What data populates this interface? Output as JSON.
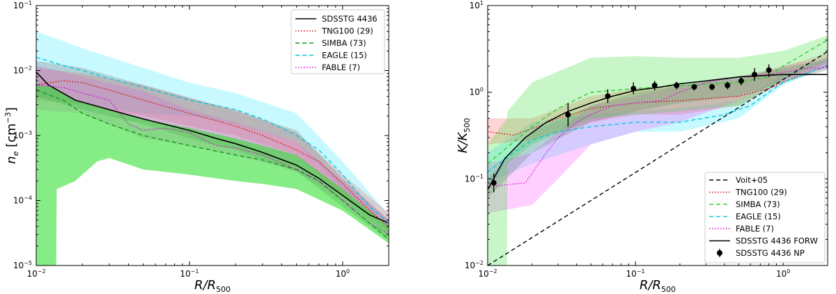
{
  "chart_data": [
    {
      "type": "line",
      "panel": "left",
      "xscale": "log",
      "yscale": "log",
      "xlim": [
        0.01,
        2.0
      ],
      "ylim": [
        1e-05,
        0.1
      ],
      "xlabel": {
        "main": "R/R",
        "sub": "500"
      },
      "ylabel": {
        "main": "n",
        "sub": "e",
        "unit": " [cm",
        "unit_exp": "−3",
        "unit_close": "]"
      },
      "xticks": [
        {
          "value": 0.01,
          "base": "10",
          "exp": "−2"
        },
        {
          "value": 0.1,
          "base": "10",
          "exp": "−1"
        },
        {
          "value": 1.0,
          "base": "10",
          "exp": "0"
        }
      ],
      "yticks": [
        {
          "value": 1e-05,
          "base": "10",
          "exp": "−5"
        },
        {
          "value": 0.0001,
          "base": "10",
          "exp": "−4"
        },
        {
          "value": 0.001,
          "base": "10",
          "exp": "−3"
        },
        {
          "value": 0.01,
          "base": "10",
          "exp": "−2"
        },
        {
          "value": 0.1,
          "base": "10",
          "exp": "−1"
        }
      ],
      "legend_position": "top-right",
      "bands": [
        {
          "name": "EAGLE band",
          "color": "#00e5ff",
          "opacity": 0.22,
          "x": [
            0.01,
            0.02,
            0.05,
            0.1,
            0.2,
            0.5,
            1.0,
            2.0
          ],
          "lower": [
            0.004,
            0.003,
            0.0022,
            0.002,
            0.0015,
            0.0008,
            0.00015,
            4e-05
          ],
          "upper": [
            0.04,
            0.022,
            0.011,
            0.0065,
            0.0045,
            0.0022,
            0.0004,
            6e-05
          ]
        },
        {
          "name": "TNG100 band",
          "color": "#ff5555",
          "opacity": 0.25,
          "x": [
            0.01,
            0.02,
            0.05,
            0.1,
            0.2,
            0.5,
            1.0,
            2.0
          ],
          "lower": [
            0.0035,
            0.003,
            0.002,
            0.0014,
            0.001,
            0.0005,
            0.00012,
            3.5e-05
          ],
          "upper": [
            0.011,
            0.009,
            0.006,
            0.0038,
            0.0025,
            0.0011,
            0.00025,
            6.5e-05
          ]
        },
        {
          "name": "FABLE band",
          "color": "#ff44ff",
          "opacity": 0.25,
          "x": [
            0.01,
            0.02,
            0.05,
            0.1,
            0.2,
            0.5,
            1.0,
            2.0
          ],
          "lower": [
            0.0025,
            0.0022,
            0.0009,
            0.0007,
            0.0005,
            0.00028,
            0.0001,
            3e-05
          ],
          "upper": [
            0.012,
            0.008,
            0.0048,
            0.0025,
            0.0016,
            0.0008,
            0.0002,
            5e-05
          ]
        },
        {
          "name": "SDSSTG band",
          "color": "#888888",
          "opacity": 0.35,
          "x": [
            0.01,
            0.02,
            0.05,
            0.1,
            0.2,
            0.5,
            1.0,
            2.0
          ],
          "lower": [
            0.004,
            0.0025,
            0.0015,
            0.0009,
            0.0006,
            0.00028,
            8e-05,
            2.5e-05
          ],
          "upper": [
            0.014,
            0.011,
            0.006,
            0.0038,
            0.0024,
            0.0012,
            0.00022,
            5e-05
          ]
        },
        {
          "name": "SIMBA band",
          "color": "#22dd22",
          "opacity": 0.55,
          "x": [
            0.01,
            0.0135,
            0.0136,
            0.018,
            0.025,
            0.03,
            0.05,
            0.1,
            0.2,
            0.3,
            0.5,
            1.0,
            2.0
          ],
          "lower": [
            1e-05,
            1e-05,
            0.00015,
            0.0002,
            0.0004,
            0.00045,
            0.0003,
            0.00025,
            0.0002,
            0.00018,
            0.00015,
            7e-05,
            2.2e-05
          ],
          "upper": [
            0.006,
            0.0055,
            0.005,
            0.0035,
            0.0028,
            0.0025,
            0.0018,
            0.0013,
            0.0009,
            0.0007,
            0.0005,
            0.00015,
            4e-05
          ]
        }
      ],
      "series": [
        {
          "name": "SDSSTG 4436",
          "color": "#000000",
          "dash": "solid",
          "x": [
            0.01,
            0.012,
            0.018,
            0.03,
            0.05,
            0.1,
            0.15,
            0.2,
            0.3,
            0.5,
            0.7,
            1.0,
            1.5,
            2.0
          ],
          "y": [
            0.0095,
            0.006,
            0.0035,
            0.0025,
            0.0018,
            0.0012,
            0.0009,
            0.00075,
            0.00055,
            0.00035,
            0.00022,
            0.00012,
            6e-05,
            4.5e-05
          ]
        },
        {
          "name": "TNG100 (29)",
          "color": "#dd0000",
          "dash": "dotted",
          "x": [
            0.01,
            0.015,
            0.02,
            0.03,
            0.05,
            0.1,
            0.2,
            0.3,
            0.5,
            0.7,
            1.0,
            1.5,
            2.0
          ],
          "y": [
            0.006,
            0.007,
            0.0065,
            0.005,
            0.0035,
            0.0022,
            0.0014,
            0.001,
            0.0006,
            0.0004,
            0.00018,
            7e-05,
            4e-05
          ]
        },
        {
          "name": "SIMBA (73)",
          "color": "#119911",
          "dash": "dashed",
          "x": [
            0.01,
            0.015,
            0.02,
            0.03,
            0.05,
            0.1,
            0.2,
            0.3,
            0.5,
            0.7,
            1.0,
            1.5,
            2.0
          ],
          "y": [
            0.005,
            0.0035,
            0.0022,
            0.0015,
            0.001,
            0.0007,
            0.0005,
            0.00042,
            0.0003,
            0.0002,
            0.0001,
            4.5e-05,
            2.5e-05
          ]
        },
        {
          "name": "EAGLE (15)",
          "color": "#00c8dd",
          "dash": "dashed",
          "x": [
            0.01,
            0.015,
            0.02,
            0.03,
            0.05,
            0.1,
            0.2,
            0.3,
            0.5,
            0.7,
            1.0,
            1.5,
            2.0
          ],
          "y": [
            0.016,
            0.012,
            0.01,
            0.0075,
            0.0055,
            0.0035,
            0.0025,
            0.0018,
            0.001,
            0.0006,
            0.00025,
            8e-05,
            4.5e-05
          ]
        },
        {
          "name": "FABLE (7)",
          "color": "#dd00dd",
          "dash": "dotted",
          "x": [
            0.01,
            0.015,
            0.02,
            0.03,
            0.04,
            0.05,
            0.07,
            0.1,
            0.15,
            0.2,
            0.3,
            0.5,
            0.7,
            1.0,
            1.5,
            2.0
          ],
          "y": [
            0.006,
            0.0055,
            0.0045,
            0.0035,
            0.0015,
            0.0012,
            0.0013,
            0.0011,
            0.0007,
            0.00065,
            0.0005,
            0.0003,
            0.0002,
            0.0001,
            4.5e-05,
            3e-05
          ]
        }
      ]
    },
    {
      "type": "line",
      "panel": "right",
      "xscale": "log",
      "yscale": "log",
      "xlim": [
        0.01,
        2.0
      ],
      "ylim": [
        0.01,
        10.0
      ],
      "xlabel": {
        "main": "R/R",
        "sub": "500"
      },
      "ylabel": {
        "main": "K/K",
        "sub": "500"
      },
      "xticks": [
        {
          "value": 0.01,
          "base": "10",
          "exp": "−2"
        },
        {
          "value": 0.1,
          "base": "10",
          "exp": "−1"
        },
        {
          "value": 1.0,
          "base": "10",
          "exp": "0"
        }
      ],
      "yticks": [
        {
          "value": 0.01,
          "base": "10",
          "exp": "−2"
        },
        {
          "value": 0.1,
          "base": "10",
          "exp": "−1"
        },
        {
          "value": 1.0,
          "base": "10",
          "exp": "0"
        },
        {
          "value": 10.0,
          "base": "10",
          "exp": "1"
        }
      ],
      "legend_position": "bottom-right",
      "bands": [
        {
          "name": "EAGLE band",
          "color": "#00e5ff",
          "opacity": 0.22,
          "x": [
            0.01,
            0.02,
            0.05,
            0.1,
            0.2,
            0.5,
            1.0,
            2.0
          ],
          "lower": [
            0.09,
            0.15,
            0.25,
            0.35,
            0.35,
            0.5,
            1.2,
            2.0
          ],
          "upper": [
            0.2,
            0.45,
            0.55,
            0.6,
            0.65,
            0.8,
            1.6,
            2.5
          ]
        },
        {
          "name": "TNG100 band",
          "color": "#ff5555",
          "opacity": 0.25,
          "x": [
            0.01,
            0.02,
            0.05,
            0.1,
            0.2,
            0.5,
            1.0,
            2.0
          ],
          "lower": [
            0.25,
            0.28,
            0.45,
            0.55,
            0.55,
            0.7,
            1.3,
            2.2
          ],
          "upper": [
            0.5,
            0.5,
            0.9,
            1.1,
            1.2,
            1.4,
            2.0,
            2.8
          ]
        },
        {
          "name": "FABLE band",
          "color": "#ff44ff",
          "opacity": 0.25,
          "x": [
            0.01,
            0.02,
            0.03,
            0.05,
            0.1,
            0.2,
            0.5,
            1.0,
            2.0
          ],
          "lower": [
            0.04,
            0.05,
            0.1,
            0.25,
            0.35,
            0.45,
            0.8,
            1.4,
            2.0
          ],
          "upper": [
            0.15,
            0.2,
            0.35,
            0.7,
            0.9,
            1.2,
            1.5,
            2.0,
            2.5
          ]
        },
        {
          "name": "SDSSTG band",
          "color": "#888888",
          "opacity": 0.35,
          "x": [
            0.01,
            0.02,
            0.05,
            0.1,
            0.2,
            0.5,
            1.0,
            2.0
          ],
          "lower": [
            0.06,
            0.2,
            0.45,
            0.6,
            0.75,
            0.9,
            1.3,
            1.8
          ],
          "upper": [
            0.1,
            0.35,
            0.7,
            1.0,
            1.2,
            1.5,
            1.9,
            2.4
          ]
        },
        {
          "name": "SIMBA band",
          "color": "#22dd22",
          "opacity": 0.25,
          "x": [
            0.01,
            0.0135,
            0.0136,
            0.02,
            0.05,
            0.1,
            0.2,
            0.5,
            1.0,
            2.0
          ],
          "lower": [
            0.01,
            0.01,
            0.15,
            0.25,
            0.5,
            0.55,
            0.6,
            0.7,
            1.4,
            2.3
          ],
          "upper": [
            0.25,
            0.5,
            0.6,
            1.3,
            2.5,
            2.6,
            2.5,
            2.5,
            3.0,
            4.5
          ]
        }
      ],
      "series": [
        {
          "name": "Voit+05",
          "color": "#000000",
          "dash": "dashed",
          "x": [
            0.01,
            2.0
          ],
          "y": [
            0.01,
            2.95
          ]
        },
        {
          "name": "TNG100 (29)",
          "color": "#dd0000",
          "dash": "dotted",
          "x": [
            0.01,
            0.015,
            0.02,
            0.03,
            0.05,
            0.1,
            0.2,
            0.5,
            0.8,
            1.0,
            1.5,
            2.0
          ],
          "y": [
            0.35,
            0.32,
            0.38,
            0.5,
            0.65,
            0.75,
            0.8,
            0.9,
            1.1,
            1.3,
            1.7,
            2.0
          ]
        },
        {
          "name": "SIMBA (73)",
          "color": "#33cc33",
          "dash": "dashed",
          "x": [
            0.01,
            0.02,
            0.03,
            0.05,
            0.1,
            0.2,
            0.5,
            0.8,
            1.0,
            1.5,
            2.0
          ],
          "y": [
            0.15,
            0.4,
            0.65,
            1.0,
            1.1,
            1.2,
            1.3,
            1.5,
            2.0,
            3.0,
            4.0
          ]
        },
        {
          "name": "EAGLE (15)",
          "color": "#00c8dd",
          "dash": "dashed",
          "x": [
            0.01,
            0.015,
            0.02,
            0.03,
            0.05,
            0.1,
            0.2,
            0.4,
            0.6,
            0.8,
            1.0,
            1.5,
            2.0
          ],
          "y": [
            0.12,
            0.2,
            0.28,
            0.35,
            0.4,
            0.45,
            0.45,
            0.55,
            0.7,
            1.0,
            1.3,
            1.7,
            2.0
          ]
        },
        {
          "name": "FABLE (7)",
          "color": "#dd00dd",
          "dash": "dotted",
          "x": [
            0.01,
            0.013,
            0.018,
            0.025,
            0.03,
            0.04,
            0.05,
            0.07,
            0.1,
            0.15,
            0.2,
            0.3,
            0.5,
            0.8,
            1.0,
            1.5,
            2.0
          ],
          "y": [
            0.08,
            0.085,
            0.09,
            0.2,
            0.3,
            0.45,
            0.55,
            0.7,
            0.75,
            0.8,
            1.0,
            1.3,
            1.5,
            1.6,
            1.7,
            1.9,
            1.9
          ]
        },
        {
          "name": "SDSSTG 4436 FORW",
          "color": "#000000",
          "dash": "solid",
          "x": [
            0.01,
            0.013,
            0.018,
            0.025,
            0.035,
            0.05,
            0.07,
            0.1,
            0.15,
            0.2,
            0.3,
            0.5,
            0.7,
            1.0,
            1.5,
            2.0
          ],
          "y": [
            0.075,
            0.17,
            0.3,
            0.45,
            0.6,
            0.75,
            0.9,
            1.05,
            1.15,
            1.25,
            1.35,
            1.5,
            1.55,
            1.6,
            1.6,
            1.6
          ]
        }
      ],
      "points": {
        "name": "SDSSTG 4436 NP",
        "color": "#000000",
        "x": [
          0.011,
          0.035,
          0.065,
          0.097,
          0.135,
          0.19,
          0.25,
          0.33,
          0.42,
          0.52,
          0.64,
          0.8
        ],
        "y": [
          0.09,
          0.55,
          0.9,
          1.1,
          1.2,
          1.2,
          1.15,
          1.15,
          1.2,
          1.35,
          1.6,
          1.8
        ],
        "yerr_lo": [
          0.02,
          0.15,
          0.15,
          0.15,
          0.15,
          0.12,
          0.1,
          0.1,
          0.12,
          0.15,
          0.25,
          0.3
        ],
        "yerr_hi": [
          0.025,
          0.2,
          0.18,
          0.2,
          0.15,
          0.12,
          0.1,
          0.1,
          0.12,
          0.18,
          0.3,
          0.3
        ]
      }
    }
  ]
}
